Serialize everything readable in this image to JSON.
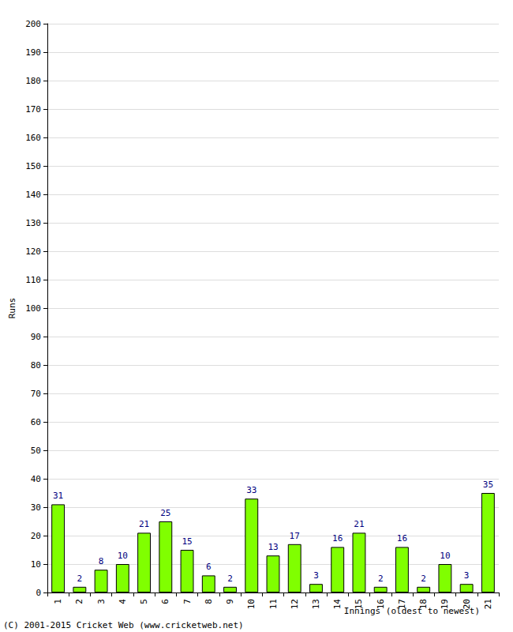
{
  "chart_data": {
    "type": "bar",
    "categories": [
      "1",
      "2",
      "3",
      "4",
      "5",
      "6",
      "7",
      "8",
      "9",
      "10",
      "11",
      "12",
      "13",
      "14",
      "15",
      "16",
      "17",
      "18",
      "19",
      "20",
      "21"
    ],
    "values": [
      31,
      2,
      8,
      10,
      21,
      25,
      15,
      6,
      2,
      33,
      13,
      17,
      3,
      16,
      21,
      2,
      16,
      2,
      10,
      3,
      35
    ],
    "color": "#80ff00",
    "x_label": "Innings (oldest to newest)",
    "y_label": "Runs",
    "ylim": [
      0,
      200
    ],
    "yticks": [
      0,
      10,
      20,
      30,
      40,
      50,
      60,
      70,
      80,
      90,
      100,
      110,
      120,
      130,
      140,
      150,
      160,
      170,
      180,
      190,
      200
    ],
    "grid": true,
    "data_labels": true,
    "annotations": [
      "(C) 2001-2015 Cricket Web (www.cricketweb.net)"
    ]
  }
}
